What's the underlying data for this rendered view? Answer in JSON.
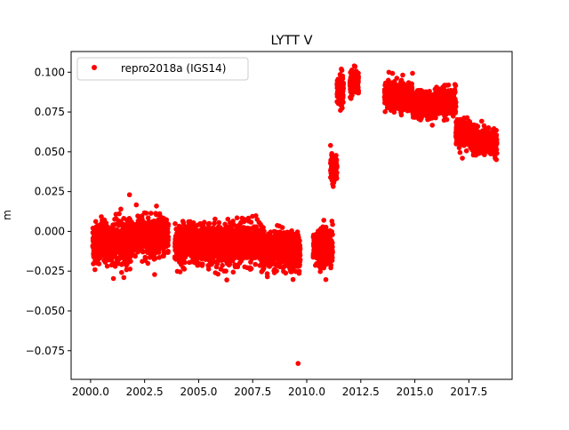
{
  "chart_data": {
    "type": "scatter",
    "title": "LYTT V",
    "xlabel": "",
    "ylabel": "m",
    "xlim": [
      1999.1,
      2019.5
    ],
    "ylim": [
      -0.093,
      0.113
    ],
    "xticks": [
      "2000.0",
      "2002.5",
      "2005.0",
      "2007.5",
      "2010.0",
      "2012.5",
      "2015.0",
      "2017.5"
    ],
    "xtick_values": [
      2000.0,
      2002.5,
      2005.0,
      2007.5,
      2010.0,
      2012.5,
      2015.0,
      2017.5
    ],
    "yticks": [
      "0.100",
      "0.075",
      "0.050",
      "0.025",
      "0.000",
      "−0.025",
      "−0.050",
      "−0.075"
    ],
    "ytick_values": [
      0.1,
      0.075,
      0.05,
      0.025,
      0.0,
      -0.025,
      -0.05,
      -0.075
    ],
    "grid": false,
    "legend": {
      "placement": "top-left",
      "entries": [
        "repro2018a (IGS14)"
      ]
    },
    "series": [
      {
        "name": "repro2018a (IGS14)",
        "color": "#ff0000",
        "marker": "circle",
        "segments": [
          {
            "x_start": 2000.1,
            "x_end": 2001.9,
            "mean": -0.007,
            "std": 0.0065
          },
          {
            "x_start": 2001.9,
            "x_end": 2003.6,
            "mean": -0.003,
            "std": 0.006
          },
          {
            "x_start": 2003.9,
            "x_end": 2005.7,
            "mean": -0.008,
            "std": 0.006
          },
          {
            "x_start": 2005.7,
            "x_end": 2007.9,
            "mean": -0.008,
            "std": 0.006
          },
          {
            "x_start": 2007.9,
            "x_end": 2009.7,
            "mean": -0.012,
            "std": 0.0055
          },
          {
            "x_start": 2010.3,
            "x_end": 2011.2,
            "mean": -0.01,
            "std": 0.006
          },
          {
            "x_start": 2011.1,
            "x_end": 2011.4,
            "mean": 0.039,
            "std": 0.004
          },
          {
            "x_start": 2011.4,
            "x_end": 2011.7,
            "mean": 0.088,
            "std": 0.005
          },
          {
            "x_start": 2012.0,
            "x_end": 2012.4,
            "mean": 0.094,
            "std": 0.0035
          },
          {
            "x_start": 2013.6,
            "x_end": 2014.9,
            "mean": 0.085,
            "std": 0.004
          },
          {
            "x_start": 2014.9,
            "x_end": 2016.0,
            "mean": 0.079,
            "std": 0.004
          },
          {
            "x_start": 2016.0,
            "x_end": 2016.9,
            "mean": 0.082,
            "std": 0.004
          },
          {
            "x_start": 2016.9,
            "x_end": 2017.7,
            "mean": 0.062,
            "std": 0.004
          },
          {
            "x_start": 2017.7,
            "x_end": 2018.8,
            "mean": 0.056,
            "std": 0.004
          }
        ],
        "outliers": [
          {
            "x": 2001.8,
            "y": 0.023
          },
          {
            "x": 2001.4,
            "y": 0.014
          },
          {
            "x": 2009.6,
            "y": -0.083
          },
          {
            "x": 2011.1,
            "y": 0.054
          },
          {
            "x": 2011.6,
            "y": 0.102
          },
          {
            "x": 2012.2,
            "y": 0.104
          },
          {
            "x": 2013.8,
            "y": 0.1
          },
          {
            "x": 2017.2,
            "y": 0.046
          }
        ]
      }
    ]
  }
}
